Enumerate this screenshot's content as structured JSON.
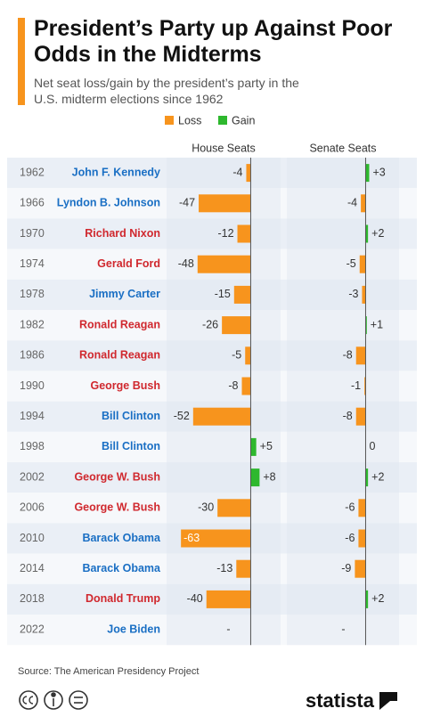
{
  "chart_data": {
    "type": "diverging-bar",
    "title": "President’s Party up Against Poor Odds in the Midterms",
    "subtitle": "Net seat loss/gain by the president’s party in the U.S. midterm elections since 1962",
    "legend": [
      {
        "name": "Loss",
        "color": "#f7941d"
      },
      {
        "name": "Gain",
        "color": "#2eb82e"
      }
    ],
    "categories": [
      "1962",
      "1966",
      "1970",
      "1974",
      "1978",
      "1982",
      "1986",
      "1990",
      "1994",
      "1998",
      "2002",
      "2006",
      "2010",
      "2014",
      "2018",
      "2022"
    ],
    "presidents": [
      "John F. Kennedy",
      "Lyndon B. Johnson",
      "Richard Nixon",
      "Gerald Ford",
      "Jimmy Carter",
      "Ronald Reagan",
      "Ronald Reagan",
      "George Bush",
      "Bill Clinton",
      "Bill Clinton",
      "George W. Bush",
      "George W. Bush",
      "Barack Obama",
      "Barack Obama",
      "Donald Trump",
      "Joe Biden"
    ],
    "president_colors": [
      "#1a6fc4",
      "#1a6fc4",
      "#d0282e",
      "#d0282e",
      "#1a6fc4",
      "#d0282e",
      "#d0282e",
      "#d0282e",
      "#1a6fc4",
      "#1a6fc4",
      "#d0282e",
      "#d0282e",
      "#1a6fc4",
      "#1a6fc4",
      "#d0282e",
      "#1a6fc4"
    ],
    "series": [
      {
        "name": "House Seats",
        "xlim": [
          -76,
          27
        ],
        "values": [
          -4,
          -47,
          -12,
          -48,
          -15,
          -26,
          -5,
          -8,
          -52,
          5,
          8,
          -30,
          -63,
          -13,
          -40,
          null
        ],
        "value_labels": [
          "-4",
          "-47",
          "-12",
          "-48",
          "-15",
          "-26",
          "-5",
          "-8",
          "-52",
          "+5",
          "+8",
          "-30",
          "-63",
          "-13",
          "-40",
          "-"
        ]
      },
      {
        "name": "Senate Seats",
        "xlim": [
          -66,
          28
        ],
        "values": [
          3,
          -4,
          2,
          -5,
          -3,
          1,
          -8,
          -1,
          -8,
          0,
          2,
          -6,
          -6,
          -9,
          2,
          null
        ],
        "value_labels": [
          "+3",
          "-4",
          "+2",
          "-5",
          "-3",
          "+1",
          "-8",
          "-1",
          "-8",
          "0",
          "+2",
          "-6",
          "-6",
          "-9",
          "+2",
          "-"
        ]
      }
    ],
    "source": "Source: The American Presidency Project",
    "brand": "statista"
  }
}
